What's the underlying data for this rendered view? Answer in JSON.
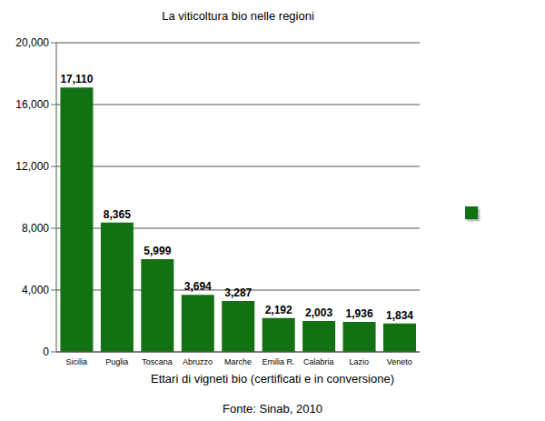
{
  "chart_data": {
    "type": "bar",
    "title": "La viticoltura bio nelle regioni",
    "x_label": "Ettari di vigneti bio (certificati e in conversione)",
    "source": "Fonte: Sinab, 2010",
    "categories": [
      "Sicilia",
      "Puglia",
      "Toscana",
      "Abruzzo",
      "Marche",
      "Emilia R.",
      "Calabria",
      "Lazio",
      "Veneto"
    ],
    "values": [
      17110,
      8365,
      5999,
      3694,
      3287,
      2192,
      2003,
      1936,
      1834
    ],
    "value_labels": [
      "17,110",
      "8,365",
      "5,999",
      "3,694",
      "3,287",
      "2,192",
      "2,003",
      "1,936",
      "1,834"
    ],
    "color": "#127112",
    "ylim": [
      0,
      20000
    ],
    "yticks": [
      0,
      {
        "value": 4000,
        "label": "4,000"
      },
      {
        "value": 8000,
        "label": "8,000"
      },
      {
        "value": 12000,
        "label": "12,000"
      },
      {
        "value": 16000,
        "label": "16,000"
      },
      {
        "value": 20000,
        "label": "20,000"
      }
    ],
    "grid": true,
    "data_labels": true
  }
}
